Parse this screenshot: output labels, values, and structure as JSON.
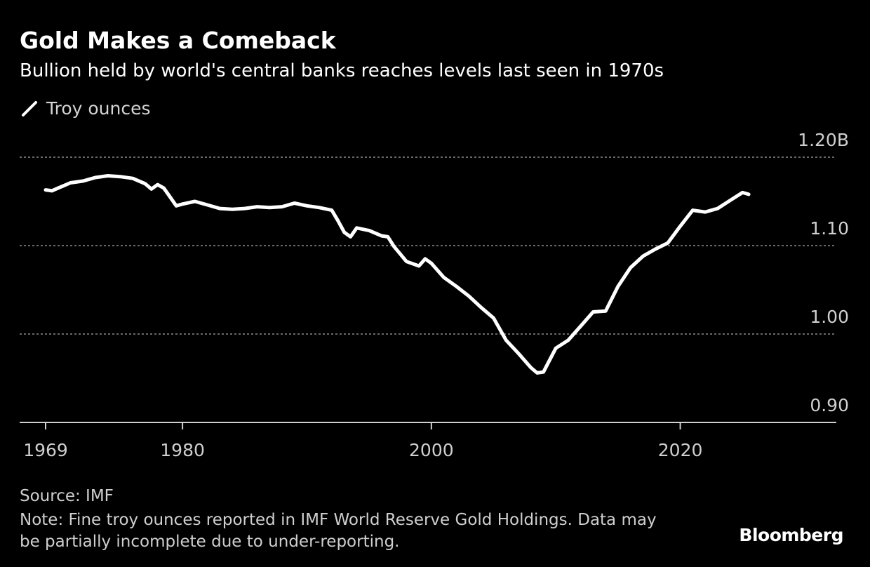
{
  "title": "Gold Makes a Comeback",
  "subtitle": "Bullion held by world's central banks reaches levels last seen in 1970s",
  "legend": {
    "label": "Troy ounces",
    "color": "#ffffff"
  },
  "source": "Source: IMF",
  "note": "Note: Fine troy ounces reported in IMF World Reserve Gold Holdings. Data may be partially incomplete due to under-reporting.",
  "brand": "Bloomberg",
  "colors": {
    "background": "#000000",
    "line": "#ffffff",
    "grid": "#8a8a8a",
    "axis_text": "#cfcfcf"
  },
  "chart_data": {
    "type": "line",
    "title": "Gold Makes a Comeback",
    "subtitle": "Bullion held by world's central banks reaches levels last seen in 1970s",
    "xlabel": "",
    "ylabel": "",
    "xlim": [
      1969,
      2026
    ],
    "ylim": [
      0.9,
      1.2
    ],
    "x_ticks": [
      {
        "value": 1969,
        "label": "1969"
      },
      {
        "value": 1980,
        "label": "1980"
      },
      {
        "value": 2000,
        "label": "2000"
      },
      {
        "value": 2020,
        "label": "2020"
      }
    ],
    "y_ticks": [
      {
        "value": 0.9,
        "label": "0.90"
      },
      {
        "value": 1.0,
        "label": "1.00"
      },
      {
        "value": 1.1,
        "label": "1.10"
      },
      {
        "value": 1.2,
        "label": "1.20B"
      }
    ],
    "grid": "horizontal dotted",
    "legend_position": "top-left",
    "series": [
      {
        "name": "Troy ounces",
        "x": [
          1969,
          1969.5,
          1970,
          1970.5,
          1971,
          1972,
          1973,
          1974,
          1975,
          1976,
          1977,
          1977.5,
          1978,
          1978.5,
          1979,
          1979.5,
          1980,
          1981,
          1982,
          1983,
          1984,
          1985,
          1986,
          1987,
          1988,
          1989,
          1990,
          1991,
          1992,
          1992.5,
          1993,
          1993.5,
          1994,
          1995,
          1996,
          1996.5,
          1997,
          1998,
          1999,
          1999.5,
          2000,
          2001,
          2002,
          2003,
          2004,
          2005,
          2006,
          2007,
          2008,
          2008.5,
          2009,
          2010,
          2011,
          2012,
          2013,
          2014,
          2015,
          2016,
          2017,
          2018,
          2019,
          2020,
          2021,
          2022,
          2023,
          2024,
          2025,
          2025.5
        ],
        "y": [
          1.163,
          1.162,
          1.165,
          1.168,
          1.171,
          1.173,
          1.177,
          1.179,
          1.178,
          1.176,
          1.17,
          1.164,
          1.169,
          1.165,
          1.155,
          1.145,
          1.147,
          1.15,
          1.146,
          1.142,
          1.141,
          1.142,
          1.144,
          1.143,
          1.144,
          1.148,
          1.145,
          1.143,
          1.14,
          1.128,
          1.115,
          1.11,
          1.12,
          1.117,
          1.111,
          1.11,
          1.099,
          1.082,
          1.077,
          1.085,
          1.08,
          1.064,
          1.054,
          1.043,
          1.03,
          1.018,
          0.993,
          0.978,
          0.962,
          0.956,
          0.957,
          0.984,
          0.993,
          1.009,
          1.025,
          1.026,
          1.054,
          1.075,
          1.088,
          1.096,
          1.103,
          1.122,
          1.14,
          1.138,
          1.142,
          1.151,
          1.16,
          1.158
        ]
      }
    ]
  }
}
